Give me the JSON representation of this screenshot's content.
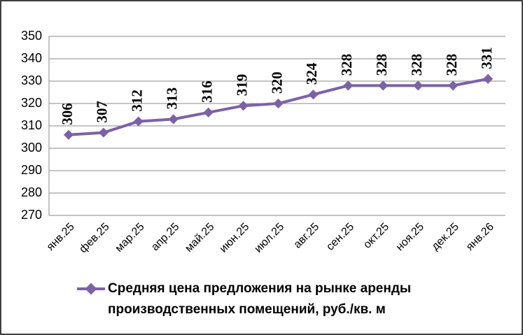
{
  "chart_data": {
    "type": "line",
    "categories": [
      "янв.25",
      "фев.25",
      "мар.25",
      "апр.25",
      "май.25",
      "июн.25",
      "июл.25",
      "авг.25",
      "сен.25",
      "окт.25",
      "ноя.25",
      "дек.25",
      "янв.26"
    ],
    "series": [
      {
        "name": "Средняя цена предложения на рынке аренды производственных помещений,  руб./кв. м",
        "color": "#7b62a6",
        "values": [
          306,
          307,
          312,
          313,
          316,
          319,
          320,
          324,
          328,
          328,
          328,
          328,
          331
        ]
      }
    ],
    "ylim": [
      270,
      350
    ],
    "yticks": [
      270,
      280,
      290,
      300,
      310,
      320,
      330,
      340,
      350
    ],
    "grid": true
  }
}
